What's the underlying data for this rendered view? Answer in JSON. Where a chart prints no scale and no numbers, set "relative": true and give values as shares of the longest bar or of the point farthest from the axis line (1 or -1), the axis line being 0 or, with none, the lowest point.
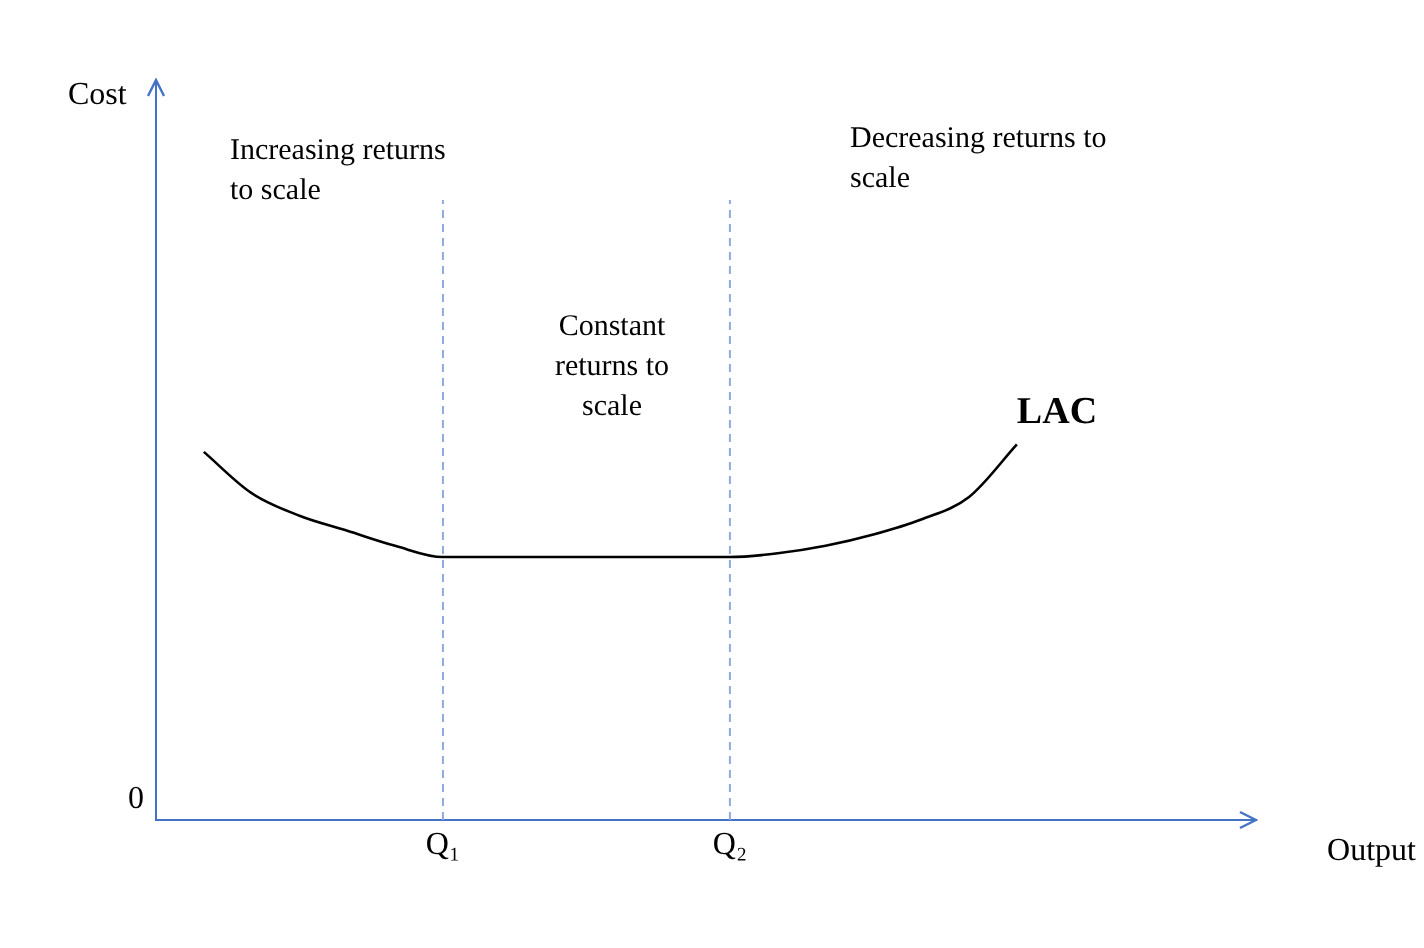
{
  "chart_data": {
    "type": "line",
    "relative": true,
    "xlabel": "Output",
    "categories": [
      null,
      null,
      null,
      null,
      null,
      null,
      "Q₁",
      null,
      null,
      null,
      null,
      null,
      "Q₂",
      null,
      null,
      null,
      null,
      null,
      null,
      null,
      null,
      null,
      null,
      null
    ],
    "series": [
      {
        "name": "LAC",
        "color": "#000000",
        "values": [
          null,
          0.98,
          0.87,
          0.81,
          0.77,
          0.73,
          0.7,
          0.7,
          0.7,
          0.7,
          0.7,
          0.7,
          0.7,
          0.71,
          0.73,
          0.76,
          0.8,
          0.86,
          1,
          null,
          null,
          null,
          null,
          null
        ]
      }
    ],
    "ref_lines": [
      {
        "axis": "x",
        "value": "Q₁",
        "color": "#8faadc",
        "line_style": "dashed"
      },
      {
        "axis": "x",
        "value": "Q₂",
        "color": "#8faadc",
        "line_style": "dashed"
      }
    ],
    "annotations": [
      "Increasing returns to scale",
      "Constant returns to scale",
      "Decreasing returns to scale",
      "0",
      "Cost"
    ],
    "grid": false,
    "legend": false,
    "marker": "none",
    "line_style": "solid"
  }
}
